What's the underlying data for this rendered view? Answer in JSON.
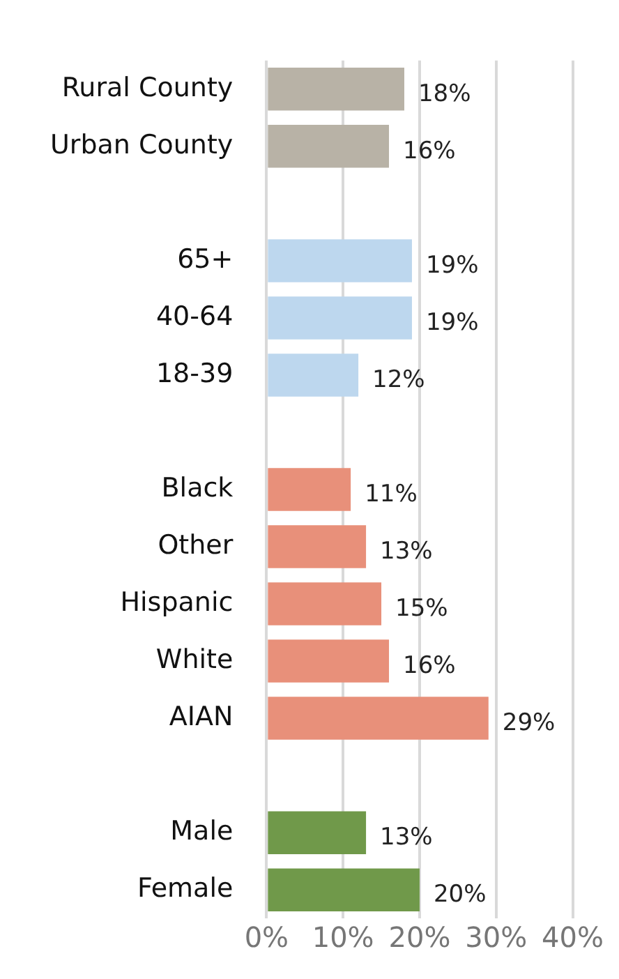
{
  "chart_data": {
    "type": "bar",
    "orientation": "horizontal",
    "categories": [
      "Rural County",
      "Urban County",
      null,
      "65+",
      "40-64",
      "18-39",
      null,
      "Black",
      "Other",
      "Hispanic",
      "White",
      "AIAN",
      null,
      "Male",
      "Female"
    ],
    "values": [
      18,
      16,
      null,
      19,
      19,
      12,
      null,
      11,
      13,
      15,
      16,
      29,
      null,
      13,
      20
    ],
    "colors": [
      "#b8b2a6",
      "#b8b2a6",
      null,
      "#bdd7ee",
      "#bdd7ee",
      "#bdd7ee",
      null,
      "#e8907a",
      "#e8907a",
      "#e8907a",
      "#e8907a",
      "#e8907a",
      null,
      "#70994a",
      "#70994a"
    ],
    "value_labels": [
      "18%",
      "16%",
      null,
      "19%",
      "19%",
      "12%",
      null,
      "11%",
      "13%",
      "15%",
      "16%",
      "29%",
      null,
      "13%",
      "20%"
    ],
    "xlim": [
      0,
      40
    ],
    "xticks": [
      {
        "value": 0,
        "label": "0%"
      },
      {
        "value": 10,
        "label": "10%"
      },
      {
        "value": 20,
        "label": "20%"
      },
      {
        "value": 30,
        "label": "30%"
      },
      {
        "value": 40,
        "label": "40%"
      }
    ],
    "grid": "x",
    "legend": false
  }
}
